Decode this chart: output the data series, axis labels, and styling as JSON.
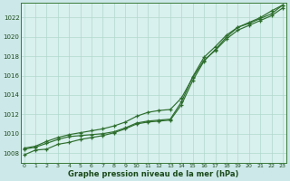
{
  "title": "Graphe pression niveau de la mer (hPa)",
  "background_color": "#cde8e8",
  "plot_bg_color": "#d8f0ee",
  "grid_color": "#b0d8cc",
  "line_color": "#2d6e2d",
  "x_labels": [
    "0",
    "1",
    "2",
    "3",
    "4",
    "5",
    "6",
    "7",
    "8",
    "9",
    "10",
    "11",
    "12",
    "13",
    "14",
    "15",
    "16",
    "17",
    "18",
    "19",
    "20",
    "21",
    "22",
    "23"
  ],
  "ylim": [
    1007.0,
    1023.5
  ],
  "yticks": [
    1008,
    1010,
    1012,
    1014,
    1016,
    1018,
    1020,
    1022
  ],
  "series": [
    [
      1007.8,
      1008.3,
      1008.4,
      1008.9,
      1009.1,
      1009.4,
      1009.6,
      1009.8,
      1010.1,
      1010.5,
      1011.0,
      1011.2,
      1011.3,
      1011.4,
      1013.0,
      1015.5,
      1017.5,
      1018.7,
      1020.0,
      1021.0,
      1021.5,
      1022.0,
      1022.7,
      1023.3
    ],
    [
      1008.4,
      1008.6,
      1009.0,
      1009.4,
      1009.7,
      1009.8,
      1009.9,
      1010.0,
      1010.2,
      1010.6,
      1011.1,
      1011.3,
      1011.4,
      1011.5,
      1013.3,
      1015.9,
      1017.9,
      1019.0,
      1020.2,
      1021.0,
      1021.4,
      1021.9,
      1022.4,
      1023.3
    ],
    [
      1008.5,
      1008.7,
      1009.2,
      1009.6,
      1009.9,
      1010.1,
      1010.3,
      1010.5,
      1010.8,
      1011.2,
      1011.8,
      1012.2,
      1012.4,
      1012.5,
      1013.7,
      1015.8,
      1017.6,
      1018.6,
      1019.8,
      1020.7,
      1021.2,
      1021.7,
      1022.2,
      1023.0
    ]
  ]
}
